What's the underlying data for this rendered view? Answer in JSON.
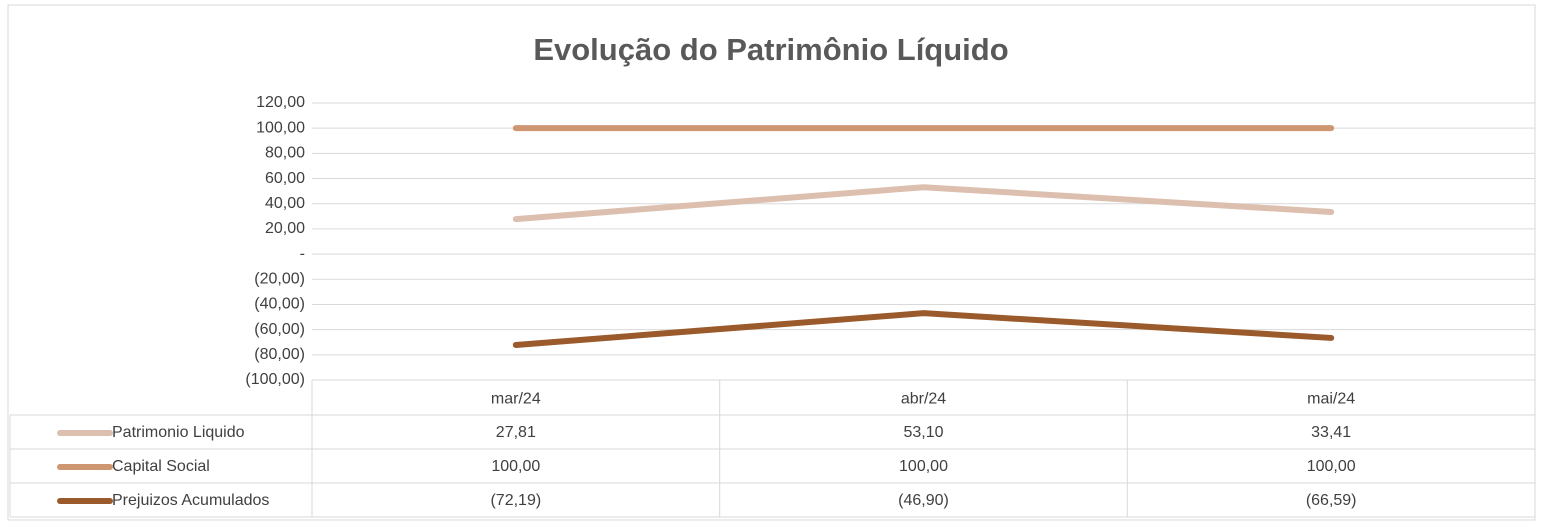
{
  "chart_data": {
    "type": "line",
    "title": "Evolução do Patrimônio Líquido",
    "categories": [
      "mar/24",
      "abr/24",
      "mai/24"
    ],
    "series": [
      {
        "name": "Patrimonio Liquido",
        "color": "#dcbfae",
        "values": [
          27.81,
          53.1,
          33.41
        ],
        "value_labels": [
          "27,81",
          "53,10",
          "33,41"
        ]
      },
      {
        "name": "Capital Social",
        "color": "#cf9672",
        "values": [
          100,
          100,
          100
        ],
        "value_labels": [
          "100,00",
          "100,00",
          "100,00"
        ]
      },
      {
        "name": "Prejuizos Acumulados",
        "color": "#9a5a2b",
        "values": [
          -72.19,
          -46.9,
          -66.59
        ],
        "value_labels": [
          "(72,19)",
          "(46,90)",
          "(66,59)"
        ]
      }
    ],
    "ylim": [
      -100,
      120
    ],
    "yticks": [
      {
        "value": -100,
        "label": "(100,00)"
      },
      {
        "value": -80,
        "label": "(80,00)"
      },
      {
        "value": -60,
        "label": "(60,00)"
      },
      {
        "value": -40,
        "label": "(40,00)"
      },
      {
        "value": -20,
        "label": "(20,00)"
      },
      {
        "value": 0,
        "label": "-"
      },
      {
        "value": 20,
        "label": "20,00"
      },
      {
        "value": 40,
        "label": "40,00"
      },
      {
        "value": 60,
        "label": "60,00"
      },
      {
        "value": 80,
        "label": "80,00"
      },
      {
        "value": 100,
        "label": "100,00"
      },
      {
        "value": 120,
        "label": "120,00"
      }
    ],
    "grid": true
  }
}
